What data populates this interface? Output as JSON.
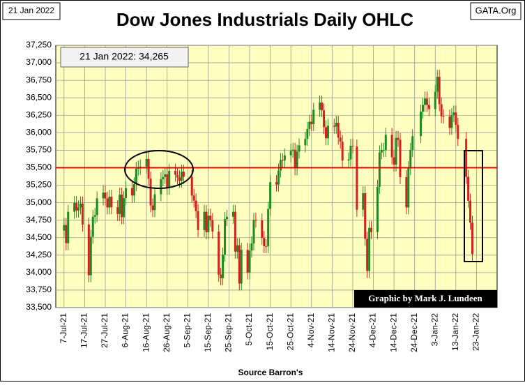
{
  "chart_data": {
    "type": "candlestick",
    "title": "Dow Jones Industrials Daily OHLC",
    "date_label": "21 Jan 2022",
    "source_label": "GATA.Org",
    "annotation": "21 Jan 2022:  34,265",
    "credit": "Graphic by Mark J. Lundeen",
    "x_label": "Source Barron's",
    "up_color": "#1f8a1f",
    "down_color": "#d42020",
    "plot_color": "#ffffc0",
    "hline": 35500,
    "hline_color": "#e00000",
    "grid": true,
    "xlim": [
      "2021-07-03",
      "2022-02-02"
    ],
    "xticks": [
      {
        "value": "2021-07-07",
        "label": "7-Jul-21"
      },
      {
        "value": "2021-07-17",
        "label": "17-Jul-21"
      },
      {
        "value": "2021-07-27",
        "label": "27-Jul-21"
      },
      {
        "value": "2021-08-06",
        "label": "6-Aug-21"
      },
      {
        "value": "2021-08-16",
        "label": "16-Aug-21"
      },
      {
        "value": "2021-08-26",
        "label": "26-Aug-21"
      },
      {
        "value": "2021-09-05",
        "label": "5-Sep-21"
      },
      {
        "value": "2021-09-15",
        "label": "15-Sep-21"
      },
      {
        "value": "2021-09-25",
        "label": "25-Sep-21"
      },
      {
        "value": "2021-10-05",
        "label": "5-Oct-21"
      },
      {
        "value": "2021-10-15",
        "label": "15-Oct-21"
      },
      {
        "value": "2021-10-25",
        "label": "25-Oct-21"
      },
      {
        "value": "2021-11-04",
        "label": "4-Nov-21"
      },
      {
        "value": "2021-11-14",
        "label": "14-Nov-21"
      },
      {
        "value": "2021-11-24",
        "label": "24-Nov-21"
      },
      {
        "value": "2021-12-04",
        "label": "4-Dec-21"
      },
      {
        "value": "2021-12-14",
        "label": "14-Dec-21"
      },
      {
        "value": "2021-12-24",
        "label": "24-Dec-21"
      },
      {
        "value": "2022-01-03",
        "label": "3-Jan-22"
      },
      {
        "value": "2022-01-13",
        "label": "13-Jan-22"
      },
      {
        "value": "2022-01-23",
        "label": "23-Jan-22"
      }
    ],
    "ylim": [
      33500,
      37250
    ],
    "yticks": [
      {
        "value": 33500,
        "label": "33,500"
      },
      {
        "value": 33750,
        "label": "33,750"
      },
      {
        "value": 34000,
        "label": "34,000"
      },
      {
        "value": 34250,
        "label": "34,250"
      },
      {
        "value": 34500,
        "label": "34,500"
      },
      {
        "value": 34750,
        "label": "34,750"
      },
      {
        "value": 35000,
        "label": "35,000"
      },
      {
        "value": 35250,
        "label": "35,250"
      },
      {
        "value": 35500,
        "label": "35,500"
      },
      {
        "value": 35750,
        "label": "35,750"
      },
      {
        "value": 36000,
        "label": "36,000"
      },
      {
        "value": 36250,
        "label": "36,250"
      },
      {
        "value": 36500,
        "label": "36,500"
      },
      {
        "value": 36750,
        "label": "36,750"
      },
      {
        "value": 37000,
        "label": "37,000"
      },
      {
        "value": 37250,
        "label": "37,250"
      }
    ],
    "x": [
      "2021-07-07",
      "2021-07-08",
      "2021-07-09",
      "2021-07-12",
      "2021-07-13",
      "2021-07-14",
      "2021-07-15",
      "2021-07-16",
      "2021-07-19",
      "2021-07-20",
      "2021-07-21",
      "2021-07-22",
      "2021-07-23",
      "2021-07-26",
      "2021-07-27",
      "2021-07-28",
      "2021-07-29",
      "2021-07-30",
      "2021-08-02",
      "2021-08-03",
      "2021-08-04",
      "2021-08-05",
      "2021-08-06",
      "2021-08-09",
      "2021-08-10",
      "2021-08-11",
      "2021-08-12",
      "2021-08-13",
      "2021-08-16",
      "2021-08-17",
      "2021-08-18",
      "2021-08-19",
      "2021-08-20",
      "2021-08-23",
      "2021-08-24",
      "2021-08-25",
      "2021-08-26",
      "2021-08-27",
      "2021-08-30",
      "2021-08-31",
      "2021-09-01",
      "2021-09-02",
      "2021-09-03",
      "2021-09-07",
      "2021-09-08",
      "2021-09-09",
      "2021-09-10",
      "2021-09-13",
      "2021-09-14",
      "2021-09-15",
      "2021-09-16",
      "2021-09-17",
      "2021-09-20",
      "2021-09-21",
      "2021-09-22",
      "2021-09-23",
      "2021-09-24",
      "2021-09-27",
      "2021-09-28",
      "2021-09-29",
      "2021-09-30",
      "2021-10-01",
      "2021-10-04",
      "2021-10-05",
      "2021-10-06",
      "2021-10-07",
      "2021-10-08",
      "2021-10-11",
      "2021-10-12",
      "2021-10-13",
      "2021-10-14",
      "2021-10-15",
      "2021-10-18",
      "2021-10-19",
      "2021-10-20",
      "2021-10-21",
      "2021-10-22",
      "2021-10-25",
      "2021-10-26",
      "2021-10-27",
      "2021-10-28",
      "2021-10-29",
      "2021-11-01",
      "2021-11-02",
      "2021-11-03",
      "2021-11-04",
      "2021-11-05",
      "2021-11-08",
      "2021-11-09",
      "2021-11-10",
      "2021-11-11",
      "2021-11-12",
      "2021-11-15",
      "2021-11-16",
      "2021-11-17",
      "2021-11-18",
      "2021-11-19",
      "2021-11-22",
      "2021-11-23",
      "2021-11-24",
      "2021-11-26",
      "2021-11-29",
      "2021-11-30",
      "2021-12-01",
      "2021-12-02",
      "2021-12-03",
      "2021-12-06",
      "2021-12-07",
      "2021-12-08",
      "2021-12-09",
      "2021-12-10",
      "2021-12-13",
      "2021-12-14",
      "2021-12-15",
      "2021-12-16",
      "2021-12-17",
      "2021-12-20",
      "2021-12-21",
      "2021-12-22",
      "2021-12-23",
      "2021-12-27",
      "2021-12-28",
      "2021-12-29",
      "2021-12-30",
      "2021-12-31",
      "2022-01-03",
      "2022-01-04",
      "2022-01-05",
      "2022-01-06",
      "2022-01-07",
      "2022-01-10",
      "2022-01-11",
      "2022-01-12",
      "2022-01-13",
      "2022-01-14",
      "2022-01-18",
      "2022-01-19",
      "2022-01-20",
      "2022-01-21"
    ],
    "open": [
      34600,
      34681,
      34421,
      34870,
      34996,
      34889,
      34933,
      34987,
      34688,
      33962,
      34512,
      34798,
      34823,
      35062,
      35144,
      35059,
      34931,
      35085,
      34935,
      34838,
      35116,
      34793,
      35065,
      35209,
      35102,
      35265,
      35485,
      35500,
      35516,
      35625,
      35343,
      34961,
      34894,
      35120,
      35336,
      35367,
      35406,
      35214,
      35456,
      35400,
      35361,
      35313,
      35444,
      35369,
      35100,
      35031,
      34879,
      34608,
      34870,
      34578,
      34814,
      34751,
      34585,
      33970,
      33920,
      34258,
      34765,
      34798,
      34870,
      34300,
      34391,
      33844,
      34326,
      34003,
      34315,
      34417,
      34755,
      34746,
      34496,
      34378,
      34377,
      34912,
      35295,
      35259,
      35458,
      35609,
      35603,
      35677,
      35742,
      35757,
      35491,
      35731,
      35820,
      35913,
      36053,
      36158,
      36124,
      36328,
      36432,
      36320,
      36080,
      35921,
      36100,
      36087,
      36143,
      35931,
      35871,
      35602,
      35619,
      35814,
      35804,
      34899,
      35136,
      34484,
      34022,
      34640,
      34580,
      35227,
      35719,
      35754,
      35755,
      35971,
      35650,
      35544,
      35927,
      35898,
      35365,
      34932,
      35493,
      35754,
      35951,
      36302,
      36398,
      36489,
      36398,
      36338,
      36585,
      36800,
      36408,
      36236,
      36231,
      36069,
      36253,
      36290,
      36114,
      35912,
      35369,
      35029,
      34715
    ],
    "high": [
      34781,
      34781,
      34970,
      35096,
      35096,
      35033,
      35087,
      35087,
      34788,
      34612,
      34898,
      34923,
      35162,
      35244,
      35244,
      35159,
      35185,
      35185,
      35035,
      35216,
      35216,
      35165,
      35309,
      35309,
      35365,
      35585,
      35600,
      35616,
      35725,
      35725,
      35443,
      35061,
      35220,
      35436,
      35467,
      35506,
      35506,
      35556,
      35556,
      35500,
      35461,
      35544,
      35544,
      35469,
      35200,
      35131,
      34979,
      34970,
      34970,
      34914,
      34914,
      34851,
      34685,
      34070,
      34358,
      34865,
      34898,
      34970,
      34970,
      34491,
      34491,
      34426,
      34426,
      34415,
      34517,
      34855,
      34855,
      34846,
      34596,
      34478,
      35012,
      35395,
      35395,
      35558,
      35709,
      35709,
      35777,
      35842,
      35857,
      35857,
      35831,
      35920,
      36013,
      36153,
      36258,
      36258,
      36428,
      36532,
      36532,
      36420,
      36180,
      36200,
      36200,
      36243,
      36243,
      36031,
      35971,
      35719,
      35914,
      35914,
      35904,
      35236,
      35236,
      34584,
      34740,
      34740,
      35327,
      35819,
      35854,
      35855,
      36071,
      36071,
      35750,
      36027,
      36027,
      35998,
      35465,
      35593,
      35854,
      36051,
      36402,
      36498,
      36589,
      36589,
      36498,
      36685,
      36900,
      36900,
      36508,
      36336,
      36331,
      36353,
      36390,
      36390,
      36214,
      36012,
      35469,
      35129,
      34815
    ],
    "low": [
      34500,
      34321,
      34321,
      34770,
      34789,
      34789,
      34833,
      34588,
      33862,
      33862,
      34412,
      34698,
      34723,
      34962,
      34959,
      34831,
      34831,
      34835,
      34738,
      34738,
      34693,
      34693,
      34965,
      35002,
      35002,
      35165,
      35385,
      35400,
      35416,
      35243,
      34861,
      34794,
      34794,
      35020,
      35236,
      35267,
      35114,
      35114,
      35300,
      35261,
      35213,
      35213,
      35269,
      35000,
      34931,
      34779,
      34508,
      34508,
      34478,
      34478,
      34651,
      34485,
      33870,
      33820,
      33820,
      34158,
      34665,
      34698,
      34200,
      34200,
      33744,
      33744,
      33903,
      33903,
      34215,
      34317,
      34646,
      34396,
      34278,
      34277,
      34277,
      34812,
      35159,
      35159,
      35358,
      35503,
      35503,
      35577,
      35642,
      35391,
      35391,
      35631,
      35720,
      35813,
      35953,
      36024,
      36024,
      36228,
      36220,
      35980,
      35821,
      35821,
      35987,
      35987,
      35831,
      35771,
      35502,
      35502,
      35519,
      35704,
      34799,
      34799,
      34384,
      33922,
      33922,
      34480,
      34480,
      35127,
      35619,
      35654,
      35655,
      35550,
      35444,
      35444,
      35798,
      35265,
      34832,
      34832,
      35393,
      35654,
      35851,
      36202,
      36298,
      36298,
      36238,
      36238,
      36485,
      36308,
      36136,
      36131,
      35969,
      35969,
      36153,
      36014,
      35812,
      35269,
      34929,
      34615,
      34165
    ],
    "close": [
      34681,
      34421,
      34870,
      34996,
      34889,
      34933,
      34987,
      34688,
      33962,
      34512,
      34798,
      34823,
      35062,
      35144,
      35059,
      34931,
      35085,
      34935,
      34838,
      35116,
      34793,
      35065,
      35209,
      35102,
      35265,
      35485,
      35500,
      35516,
      35625,
      35343,
      34961,
      34894,
      35120,
      35336,
      35367,
      35406,
      35214,
      35456,
      35400,
      35361,
      35313,
      35444,
      35369,
      35100,
      35031,
      34879,
      34608,
      34870,
      34578,
      34814,
      34751,
      34585,
      33970,
      33920,
      34258,
      34765,
      34798,
      34870,
      34300,
      34391,
      33844,
      34326,
      34003,
      34315,
      34417,
      34755,
      34746,
      34496,
      34378,
      34377,
      34912,
      35295,
      35259,
      35458,
      35609,
      35603,
      35677,
      35742,
      35757,
      35491,
      35731,
      35820,
      35913,
      36053,
      36158,
      36124,
      36328,
      36432,
      36320,
      36080,
      35921,
      36100,
      36087,
      36143,
      35931,
      35871,
      35602,
      35619,
      35814,
      35804,
      34899,
      35136,
      34484,
      34022,
      34640,
      34580,
      35227,
      35719,
      35754,
      35755,
      35971,
      35650,
      35544,
      35927,
      35898,
      35365,
      34932,
      35493,
      35754,
      35951,
      36302,
      36398,
      36489,
      36398,
      36338,
      36585,
      36800,
      36408,
      36236,
      36231,
      36069,
      36253,
      36290,
      36114,
      35912,
      35369,
      35029,
      34715,
      34265
    ]
  }
}
